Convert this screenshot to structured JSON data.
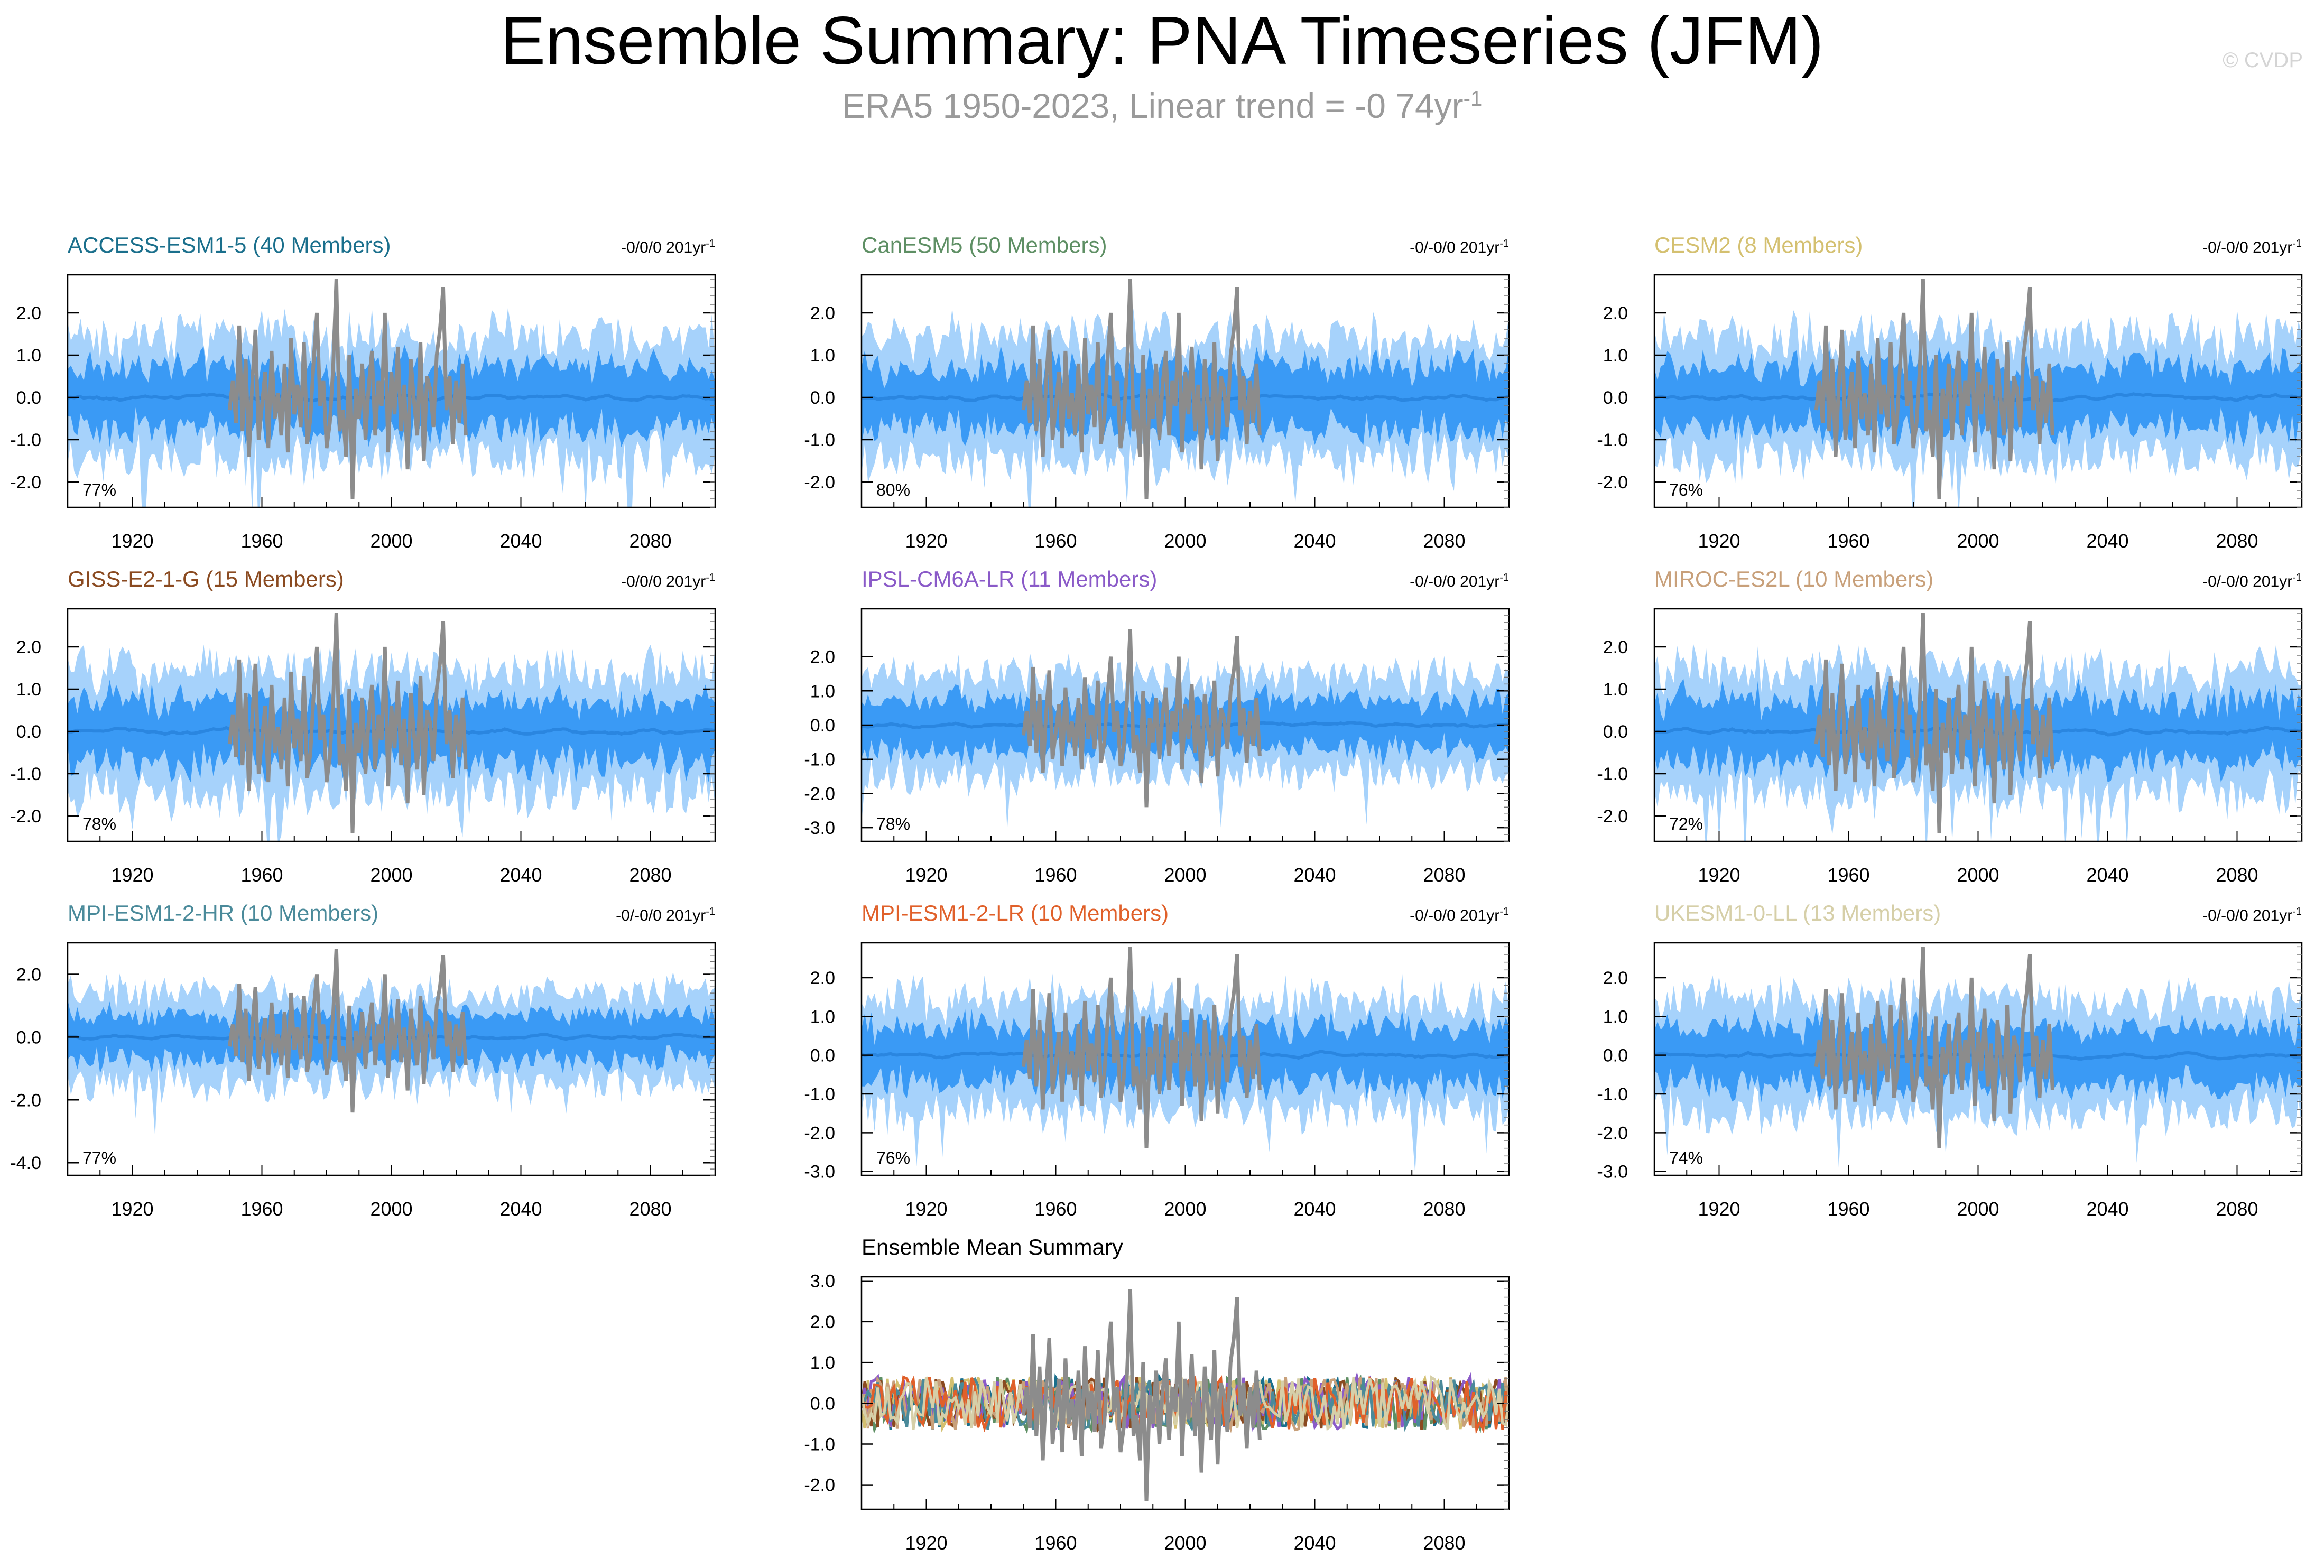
{
  "header": {
    "title": "Ensemble Summary: PNA Timeseries (JFM)",
    "subtitle": "ERA5 1950-2023, Linear trend = -0 74yr",
    "subtitle_sup": "-1",
    "watermark": "© CVDP"
  },
  "colors": {
    "outer_band": "#a6d2fb",
    "inner_band": "#3a9af5",
    "ensemble_mean": "#2a86e0",
    "observations": "#8c8c8c"
  },
  "x_ticks": [
    "1920",
    "1960",
    "2000",
    "2040",
    "2080"
  ],
  "chart_data": [
    {
      "type": "area",
      "name": "ACCESS-ESM1-5 (40 Members)",
      "title_color": "#1a6f8c",
      "trend": "-0/0/0 201yr",
      "trend_sup": "-1",
      "pct": "77%",
      "xlim": [
        1900,
        2100
      ],
      "ylim": [
        -2.6,
        2.9
      ],
      "yticks": [
        "2.0",
        "1.0",
        "0.0",
        "-1.0",
        "-2.0"
      ],
      "ytick_values": [
        2,
        1,
        0,
        -1,
        -2
      ],
      "outer": 1.6,
      "inner": 0.8
    },
    {
      "type": "area",
      "name": "CanESM5 (50 Members)",
      "title_color": "#5e8f64",
      "trend": "-0/-0/0 201yr",
      "trend_sup": "-1",
      "pct": "80%",
      "xlim": [
        1900,
        2100
      ],
      "ylim": [
        -2.6,
        2.9
      ],
      "yticks": [
        "2.0",
        "1.0",
        "0.0",
        "-1.0",
        "-2.0"
      ],
      "ytick_values": [
        2,
        1,
        0,
        -1,
        -2
      ],
      "outer": 1.6,
      "inner": 0.8
    },
    {
      "type": "area",
      "name": "CESM2 (8 Members)",
      "title_color": "#d4c070",
      "trend": "-0/-0/0 201yr",
      "trend_sup": "-1",
      "pct": "76%",
      "xlim": [
        1900,
        2100
      ],
      "ylim": [
        -2.6,
        2.9
      ],
      "yticks": [
        "2.0",
        "1.0",
        "0.0",
        "-1.0",
        "-2.0"
      ],
      "ytick_values": [
        2,
        1,
        0,
        -1,
        -2
      ],
      "outer": 1.6,
      "inner": 0.8
    },
    {
      "type": "area",
      "name": "GISS-E2-1-G (15 Members)",
      "title_color": "#8a4a20",
      "trend": "-0/0/0 201yr",
      "trend_sup": "-1",
      "pct": "78%",
      "xlim": [
        1900,
        2100
      ],
      "ylim": [
        -2.6,
        2.9
      ],
      "yticks": [
        "2.0",
        "1.0",
        "0.0",
        "-1.0",
        "-2.0"
      ],
      "ytick_values": [
        2,
        1,
        0,
        -1,
        -2
      ],
      "outer": 1.6,
      "inner": 0.8
    },
    {
      "type": "area",
      "name": "IPSL-CM6A-LR (11 Members)",
      "title_color": "#8a5ac8",
      "trend": "-0/-0/0 201yr",
      "trend_sup": "-1",
      "pct": "78%",
      "xlim": [
        1900,
        2100
      ],
      "ylim": [
        -3.4,
        3.4
      ],
      "yticks": [
        "2.0",
        "1.0",
        "0.0",
        "-1.0",
        "-2.0",
        "-3.0"
      ],
      "ytick_values": [
        2,
        1,
        0,
        -1,
        -2,
        -3
      ],
      "outer": 1.6,
      "inner": 0.8
    },
    {
      "type": "area",
      "name": "MIROC-ES2L (10 Members)",
      "title_color": "#c8a07a",
      "trend": "-0/-0/0 201yr",
      "trend_sup": "-1",
      "pct": "72%",
      "xlim": [
        1900,
        2100
      ],
      "ylim": [
        -2.6,
        2.9
      ],
      "yticks": [
        "2.0",
        "1.0",
        "0.0",
        "-1.0",
        "-2.0"
      ],
      "ytick_values": [
        2,
        1,
        0,
        -1,
        -2
      ],
      "outer": 1.6,
      "inner": 0.8
    },
    {
      "type": "area",
      "name": "MPI-ESM1-2-HR (10 Members)",
      "title_color": "#4a8a9a",
      "trend": "-0/-0/0 201yr",
      "trend_sup": "-1",
      "pct": "77%",
      "xlim": [
        1900,
        2100
      ],
      "ylim": [
        -4.4,
        3.0
      ],
      "yticks": [
        "2.0",
        "0.0",
        "-2.0",
        "-4.0"
      ],
      "ytick_values": [
        2,
        0,
        -2,
        -4
      ],
      "outer": 1.6,
      "inner": 0.8
    },
    {
      "type": "area",
      "name": "MPI-ESM1-2-LR (10 Members)",
      "title_color": "#e0602a",
      "trend": "-0/-0/0 201yr",
      "trend_sup": "-1",
      "pct": "76%",
      "xlim": [
        1900,
        2100
      ],
      "ylim": [
        -3.1,
        2.9
      ],
      "yticks": [
        "2.0",
        "1.0",
        "0.0",
        "-1.0",
        "-2.0",
        "-3.0"
      ],
      "ytick_values": [
        2,
        1,
        0,
        -1,
        -2,
        -3
      ],
      "outer": 1.6,
      "inner": 0.8
    },
    {
      "type": "area",
      "name": "UKESM1-0-LL (13 Members)",
      "title_color": "#d6cfa8",
      "trend": "-0/-0/0 201yr",
      "trend_sup": "-1",
      "pct": "74%",
      "xlim": [
        1900,
        2100
      ],
      "ylim": [
        -3.1,
        2.9
      ],
      "yticks": [
        "2.0",
        "1.0",
        "0.0",
        "-1.0",
        "-2.0",
        "-3.0"
      ],
      "ytick_values": [
        2,
        1,
        0,
        -1,
        -2,
        -3
      ],
      "outer": 1.6,
      "inner": 0.8
    },
    {
      "type": "line",
      "name": "Ensemble Mean Summary",
      "title_color": "#000000",
      "trend": "",
      "trend_sup": "",
      "pct": "",
      "xlim": [
        1900,
        2100
      ],
      "ylim": [
        -2.6,
        3.1
      ],
      "yticks": [
        "3.0",
        "2.0",
        "1.0",
        "0.0",
        "-1.0",
        "-2.0"
      ],
      "ytick_values": [
        3,
        2,
        1,
        0,
        -1,
        -2
      ],
      "series_colors": [
        "#1a6f8c",
        "#5e8f64",
        "#d4c070",
        "#8a4a20",
        "#8a5ac8",
        "#c8a07a",
        "#4a8a9a",
        "#e0602a",
        "#d6cfa8"
      ]
    }
  ],
  "observations_era5": {
    "years": [
      1950,
      1951,
      1952,
      1953,
      1954,
      1955,
      1956,
      1957,
      1958,
      1959,
      1960,
      1961,
      1962,
      1963,
      1964,
      1965,
      1966,
      1967,
      1968,
      1969,
      1970,
      1971,
      1972,
      1973,
      1974,
      1975,
      1976,
      1977,
      1978,
      1979,
      1980,
      1981,
      1982,
      1983,
      1984,
      1985,
      1986,
      1987,
      1988,
      1989,
      1990,
      1991,
      1992,
      1993,
      1994,
      1995,
      1996,
      1997,
      1998,
      1999,
      2000,
      2001,
      2002,
      2003,
      2004,
      2005,
      2006,
      2007,
      2008,
      2009,
      2010,
      2011,
      2012,
      2013,
      2014,
      2015,
      2016,
      2017,
      2018,
      2019,
      2020,
      2021,
      2022,
      2023
    ],
    "values": [
      -0.3,
      0.4,
      -0.6,
      1.7,
      -0.8,
      0.9,
      -1.4,
      0.3,
      1.6,
      -1.0,
      -0.2,
      0.6,
      -1.2,
      1.1,
      -0.5,
      0.1,
      -0.9,
      0.8,
      -1.3,
      1.4,
      -0.4,
      0.3,
      -0.7,
      1.3,
      -1.1,
      -0.5,
      0.9,
      2.0,
      -0.2,
      0.4,
      -1.2,
      -0.6,
      0.7,
      2.8,
      -0.8,
      -0.3,
      -1.4,
      1.0,
      -2.4,
      0.2,
      -0.5,
      0.8,
      -1.0,
      0.3,
      1.1,
      -0.9,
      0.4,
      -0.2,
      2.0,
      -1.3,
      0.6,
      -0.4,
      1.2,
      -0.8,
      0.3,
      -1.7,
      0.9,
      -0.1,
      -0.9,
      1.3,
      -1.5,
      0.5,
      0.2,
      -0.7,
      1.0,
      1.6,
      2.6,
      -0.3,
      0.5,
      -1.1,
      0.4,
      -0.6,
      0.8,
      -0.9
    ]
  }
}
